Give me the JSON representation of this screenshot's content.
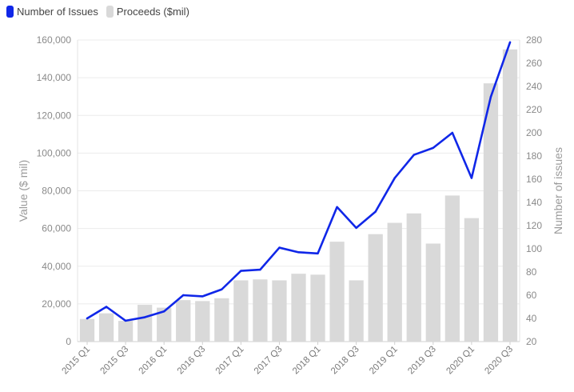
{
  "legend": {
    "items": [
      {
        "label": "Number of Issues",
        "color": "#1027e8"
      },
      {
        "label": "Proceeds ($mil)",
        "color": "#d9d9d9"
      }
    ]
  },
  "chart_data": {
    "type": "bar+line",
    "categories": [
      "2015 Q1",
      "2015 Q2",
      "2015 Q3",
      "2015 Q4",
      "2016 Q1",
      "2016 Q2",
      "2016 Q3",
      "2016 Q4",
      "2017 Q1",
      "2017 Q2",
      "2017 Q3",
      "2017 Q4",
      "2018 Q1",
      "2018 Q2",
      "2018 Q3",
      "2018 Q4",
      "2019 Q1",
      "2019 Q2",
      "2019 Q3",
      "2019 Q4",
      "2020 Q1",
      "2020 Q2",
      "2020 Q3"
    ],
    "x_tick_labels": [
      "2015 Q1",
      "2015 Q3",
      "2016 Q1",
      "2016 Q3",
      "2017 Q1",
      "2017 Q3",
      "2018 Q1",
      "2018 Q3",
      "2019 Q1",
      "2019 Q3",
      "2020 Q1",
      "2020 Q3"
    ],
    "series": [
      {
        "name": "Proceeds ($mil)",
        "type": "bar",
        "axis": "left",
        "color": "#d9d9d9",
        "values": [
          12000,
          15000,
          11000,
          19500,
          18000,
          22000,
          21500,
          23000,
          32500,
          33000,
          32500,
          36000,
          35500,
          53000,
          32500,
          57000,
          63000,
          68000,
          52000,
          77500,
          65500,
          137000,
          155000
        ]
      },
      {
        "name": "Number of Issues",
        "type": "line",
        "axis": "right",
        "color": "#1027e8",
        "values": [
          40,
          50,
          38,
          41,
          46,
          60,
          59,
          65,
          81,
          82,
          101,
          97,
          96,
          136,
          118,
          132,
          161,
          181,
          187,
          200,
          161,
          231,
          278
        ]
      }
    ],
    "ylabel": "Value ($ mil)",
    "y2label": "Number of issues",
    "ylim": [
      0,
      160000
    ],
    "y_ticks": [
      "0",
      "20,000",
      "40,000",
      "60,000",
      "80,000",
      "100,000",
      "120,000",
      "140,000",
      "160,000"
    ],
    "y2lim": [
      20,
      280
    ],
    "y2_ticks": [
      "20",
      "40",
      "60",
      "80",
      "100",
      "120",
      "140",
      "160",
      "180",
      "200",
      "220",
      "240",
      "260",
      "280"
    ],
    "grid": true,
    "legend_position": "top-left"
  }
}
